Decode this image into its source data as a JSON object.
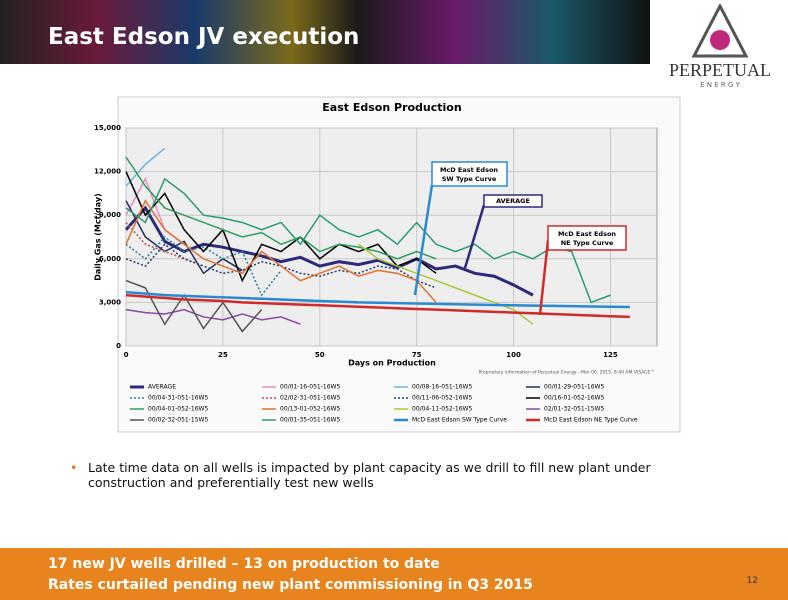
{
  "slide": {
    "title": "East Edson JV execution",
    "logo": {
      "name": "PERPETUAL",
      "sub": "E N E R G Y"
    },
    "bullet": "Late time data on all wells is impacted by plant capacity as we drill to fill new plant under construction and preferentially test new wells",
    "footer": [
      "17 new JV wells drilled – 13 on production to date",
      "Rates curtailed pending new plant commissioning in Q3 2015"
    ],
    "page": "12"
  },
  "chart_data": {
    "type": "line",
    "title": "East Edson Production",
    "y_label": "Daily Gas (Mcf/day)",
    "x_label": "Days on Production",
    "annotations": [
      [
        "McD East Edson",
        "SW Type Curve"
      ],
      [
        "AVERAGE"
      ],
      [
        "McD East Edson",
        "NE Type Curve"
      ]
    ],
    "footnote": "Proprietary information of Perpetual Energy - Mar 06, 2015, 8:40 AM VISAGE™",
    "xlim": [
      0,
      137
    ],
    "ylim": [
      0,
      15000
    ],
    "xticks": [
      0,
      25,
      50,
      75,
      100,
      125
    ],
    "yticks": [
      0,
      {
        "value": 3000,
        "label": "3,000"
      },
      {
        "value": 6000,
        "label": "6,000"
      },
      {
        "value": 9000,
        "label": "9,000"
      },
      {
        "value": 12000,
        "label": "12,000"
      },
      {
        "value": 15000,
        "label": "15,000"
      }
    ],
    "grid": true,
    "x": [
      0,
      5,
      10,
      15,
      20,
      25,
      30,
      35,
      40,
      45,
      50,
      55,
      60,
      65,
      70,
      75,
      80,
      85,
      90,
      95,
      100,
      105,
      110,
      115,
      120,
      125,
      130
    ],
    "series": [
      {
        "name": "AVERAGE",
        "color": "#2e2a7a",
        "width": 3,
        "values": [
          8000,
          9500,
          7200,
          6500,
          7000,
          6800,
          6500,
          6200,
          5800,
          6100,
          5500,
          5800,
          5600,
          5900,
          5400,
          6000,
          5300,
          5500,
          5000,
          4800,
          4200,
          3500,
          null,
          null,
          null,
          null,
          null
        ]
      },
      {
        "name": "00/01-16-051-16W5",
        "color": "#e88ec0",
        "values": [
          9000,
          11500,
          8000,
          7000,
          null,
          null,
          null,
          null,
          null,
          null,
          null,
          null,
          null,
          null,
          null,
          null,
          null,
          null,
          null,
          null,
          null,
          null,
          null,
          null,
          null,
          null,
          null
        ]
      },
      {
        "name": "00/08-16-051-16W5",
        "color": "#6fb3e0",
        "values": [
          11000,
          12500,
          13600,
          null,
          null,
          null,
          null,
          null,
          null,
          null,
          null,
          null,
          null,
          null,
          null,
          null,
          null,
          null,
          null,
          null,
          null,
          null,
          null,
          null,
          null,
          null,
          null
        ]
      },
      {
        "name": "00/01-29-051-16W5",
        "color": "#1f2f5f",
        "values": [
          10000,
          7500,
          6500,
          7200,
          5000,
          6000,
          5200,
          null,
          null,
          null,
          null,
          null,
          null,
          null,
          null,
          null,
          null,
          null,
          null,
          null,
          null,
          null,
          null,
          null,
          null,
          null,
          null
        ]
      },
      {
        "name": "00/04-31-051-16W5",
        "color": "#2a7fa8",
        "style": "dotted",
        "values": [
          7000,
          6000,
          7500,
          6500,
          6800,
          6000,
          6500,
          3500,
          5200,
          null,
          null,
          null,
          null,
          null,
          null,
          null,
          null,
          null,
          null,
          null,
          null,
          null,
          null,
          null,
          null,
          null,
          null
        ]
      },
      {
        "name": "02/02-31-051-16W5",
        "color": "#c0504d",
        "style": "dotted",
        "values": [
          8500,
          7000,
          6500,
          6000,
          5500,
          null,
          null,
          null,
          null,
          null,
          null,
          null,
          null,
          null,
          null,
          null,
          null,
          null,
          null,
          null,
          null,
          null,
          null,
          null,
          null,
          null,
          null
        ]
      },
      {
        "name": "00/11-06-052-16W5",
        "color": "#1f3f6f",
        "style": "dotted",
        "values": [
          6000,
          5500,
          7000,
          6000,
          5500,
          5000,
          5200,
          5800,
          5500,
          5000,
          4800,
          5200,
          5000,
          5500,
          5300,
          4500,
          4000,
          null,
          null,
          null,
          null,
          null,
          null,
          null,
          null,
          null,
          null
        ]
      },
      {
        "name": "00/16-01-052-16W5",
        "color": "#000000",
        "values": [
          12000,
          9000,
          10500,
          8000,
          6500,
          8000,
          4500,
          7000,
          6500,
          7500,
          6000,
          7000,
          6500,
          7000,
          5500,
          6000,
          5000,
          null,
          null,
          null,
          null,
          null,
          null,
          null,
          null,
          null,
          null
        ]
      },
      {
        "name": "00/04-01-052-16W5",
        "color": "#2e9e5e",
        "values": [
          13000,
          11000,
          9500,
          9000,
          8500,
          8000,
          7500,
          7800,
          7000,
          7500,
          6500,
          7000,
          6800,
          6500,
          6000,
          6500,
          6000,
          null,
          null,
          null,
          null,
          null,
          null,
          null,
          null,
          null,
          null
        ]
      },
      {
        "name": "00/13-01-052-16W5",
        "color": "#e07030",
        "values": [
          7000,
          10000,
          8000,
          7000,
          6000,
          5500,
          5000,
          6500,
          5500,
          4500,
          5000,
          5500,
          4800,
          5200,
          5000,
          4500,
          3000,
          null,
          null,
          null,
          null,
          null,
          null,
          null,
          null,
          null,
          null
        ]
      },
      {
        "name": "00/04-11-052-16W5",
        "color": "#a8c838",
        "values": [
          null,
          null,
          null,
          null,
          null,
          null,
          null,
          null,
          null,
          null,
          null,
          null,
          7000,
          6000,
          5500,
          5000,
          4500,
          4000,
          3500,
          3000,
          2500,
          1500,
          null,
          null,
          null,
          null,
          null
        ]
      },
      {
        "name": "02/01-32-051-15W5",
        "color": "#8a4aa8",
        "values": [
          2500,
          2300,
          2200,
          2500,
          2000,
          1800,
          2200,
          1800,
          2000,
          1500,
          null,
          null,
          null,
          null,
          null,
          null,
          null,
          null,
          null,
          null,
          null,
          null,
          null,
          null,
          null,
          null,
          null
        ]
      },
      {
        "name": "00/02-32-051-15W5",
        "color": "#555555",
        "values": [
          4500,
          4000,
          1500,
          3500,
          1200,
          3000,
          1000,
          2500,
          null,
          null,
          null,
          null,
          null,
          null,
          null,
          null,
          null,
          null,
          null,
          null,
          null,
          null,
          null,
          null,
          null,
          null,
          null
        ]
      },
      {
        "name": "00/01-35-051-16W5",
        "color": "#2a9a7a",
        "values": [
          9500,
          8500,
          11500,
          10500,
          9000,
          8800,
          8500,
          8000,
          8500,
          7000,
          9000,
          8000,
          7500,
          8000,
          7000,
          8500,
          7000,
          6500,
          7000,
          6000,
          6500,
          6000,
          6800,
          6500,
          3000,
          3500,
          null
        ]
      },
      {
        "name": "McD East Edson SW Type Curve",
        "color": "#2a8ad0",
        "width": 2.5,
        "values": [
          3700,
          3600,
          3500,
          3450,
          3400,
          3350,
          3300,
          3250,
          3200,
          3150,
          3100,
          3050,
          3000,
          2980,
          2950,
          2920,
          2900,
          2870,
          2850,
          2820,
          2800,
          2780,
          2760,
          2740,
          2720,
          2700,
          2680
        ]
      },
      {
        "name": "McD East Edson NE Type Curve",
        "color": "#d02a2a",
        "width": 2.5,
        "values": [
          3500,
          3400,
          3300,
          3200,
          3150,
          3100,
          3000,
          2950,
          2900,
          2850,
          2800,
          2750,
          2700,
          2650,
          2600,
          2550,
          2500,
          2450,
          2400,
          2350,
          2300,
          2250,
          2200,
          2150,
          2100,
          2050,
          2000
        ]
      }
    ]
  }
}
